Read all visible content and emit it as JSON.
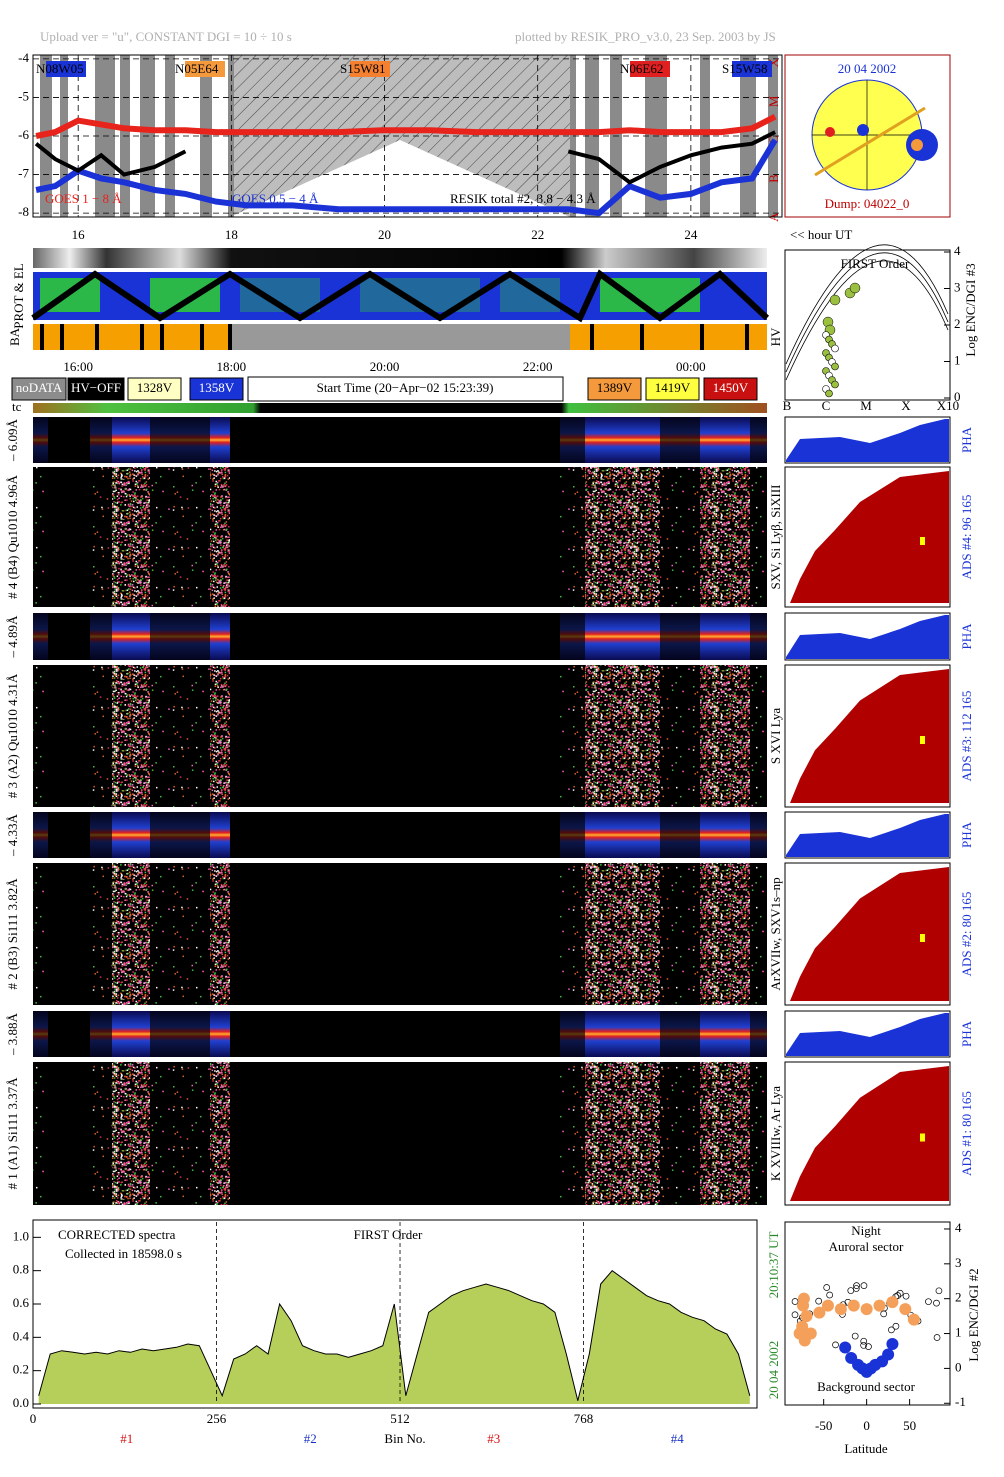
{
  "header": {
    "upload": "Upload ver = \"u\", CONSTANT  DGI =  10 ÷  10 s",
    "plotted": "plotted by RESIK_PRO_v3.0, 23 Sep. 2003 by JS"
  },
  "chart_data": [
    {
      "type": "line",
      "xlim": [
        15.41,
        25.19
      ],
      "ylim": [
        -8.1,
        -3.9
      ],
      "yticks": [
        -4,
        -5,
        -6,
        -7,
        -8
      ],
      "xticks": [
        16,
        18,
        20,
        22,
        24
      ],
      "xlabel": "<< hour UT",
      "classes": [
        "X",
        "M",
        "C",
        "B",
        "A"
      ],
      "active_regions": [
        "N08W05",
        "N05E64",
        "S15W81",
        "N06E62",
        "S15W58"
      ],
      "x": [
        15.45,
        15.7,
        16,
        16.3,
        16.6,
        17,
        17.4,
        17.8,
        18.2,
        18.8,
        19.4,
        20,
        20.6,
        21.2,
        21.8,
        22.4,
        22.8,
        23.2,
        23.6,
        24,
        24.4,
        24.8,
        25.1
      ],
      "series": [
        {
          "name": "GOES 1 − 8 Å",
          "color": "#e8231c",
          "values": [
            -6.0,
            -5.9,
            -5.6,
            -5.7,
            -5.8,
            -5.85,
            -5.85,
            -5.9,
            -5.9,
            -5.9,
            -5.9,
            -5.85,
            -5.85,
            -5.9,
            -5.9,
            -5.9,
            -5.9,
            -5.85,
            -5.9,
            -5.9,
            -5.9,
            -5.8,
            -5.5
          ]
        },
        {
          "name": "GOES 0.5 − 4 Å",
          "color": "#1b33d6",
          "values": [
            -7.4,
            -7.3,
            -6.9,
            -7.1,
            -7.2,
            -7.4,
            -7.5,
            -7.7,
            -7.8,
            -7.8,
            -7.9,
            -7.9,
            -7.9,
            -7.9,
            -7.9,
            -7.9,
            -8.0,
            -7.3,
            -7.6,
            -7.5,
            -7.2,
            -7.1,
            -6.1
          ]
        },
        {
          "name": "RESIK total #2, 3.8 − 4.3 Å",
          "color": "#000000",
          "values": [
            -6.2,
            -6.6,
            -6.9,
            -6.5,
            -7.0,
            -6.8,
            -6.4,
            null,
            null,
            null,
            null,
            null,
            null,
            null,
            null,
            -6.4,
            -6.6,
            -7.2,
            -6.8,
            -6.5,
            -6.3,
            -6.2,
            -5.9
          ]
        }
      ]
    },
    {
      "type": "area",
      "title": "FIRST Order",
      "notes": [
        "CORRECTED spectra",
        "Collected in 18598.0 s"
      ],
      "xlabel": "Bin No.",
      "xlim": [
        0,
        1010
      ],
      "xticks": [
        0,
        256,
        512,
        768
      ],
      "ylim": [
        0,
        1.05
      ],
      "yticks": [
        {
          "value": 0,
          "label": "0.0"
        },
        {
          "value": 0.2,
          "label": "0.2"
        },
        {
          "value": 0.4,
          "label": "0.4"
        },
        {
          "value": 0.6,
          "label": "0.6"
        },
        {
          "value": 0.8,
          "label": "0.8"
        },
        {
          "value": 1,
          "label": "1.0"
        }
      ],
      "channels": [
        "#1",
        "#2",
        "#3",
        "#4"
      ],
      "channel_colors": [
        "#d81414",
        "#1a33c8",
        "#d81414",
        "#1a33c8"
      ],
      "date": "20 04 2002",
      "time": "20:10:37 UT",
      "color": "#b5cf5a",
      "x": [
        8,
        24,
        40,
        56,
        72,
        88,
        104,
        120,
        136,
        152,
        168,
        184,
        200,
        216,
        232,
        248,
        264,
        280,
        296,
        312,
        328,
        344,
        360,
        376,
        392,
        408,
        424,
        440,
        456,
        472,
        488,
        504,
        520,
        536,
        552,
        568,
        584,
        600,
        616,
        632,
        648,
        664,
        680,
        696,
        712,
        728,
        744,
        760,
        776,
        792,
        808,
        824,
        840,
        856,
        872,
        888,
        904,
        920,
        936,
        952,
        968,
        984,
        1000
      ],
      "values": [
        0.05,
        0.3,
        0.32,
        0.31,
        0.3,
        0.31,
        0.3,
        0.32,
        0.31,
        0.33,
        0.32,
        0.33,
        0.34,
        0.36,
        0.35,
        0.2,
        0.05,
        0.27,
        0.3,
        0.35,
        0.3,
        0.6,
        0.5,
        0.35,
        0.32,
        0.3,
        0.3,
        0.28,
        0.3,
        0.32,
        0.35,
        0.6,
        0.05,
        0.3,
        0.55,
        0.6,
        0.65,
        0.68,
        0.7,
        0.72,
        0.7,
        0.68,
        0.65,
        0.62,
        0.6,
        0.55,
        0.3,
        0.02,
        0.3,
        0.72,
        0.8,
        0.75,
        0.7,
        0.65,
        0.62,
        0.6,
        0.55,
        0.52,
        0.5,
        0.45,
        0.42,
        0.3,
        0.05
      ]
    },
    {
      "type": "scatter",
      "title": "Night",
      "labels": [
        "Auroral sector",
        "Background sector"
      ],
      "xlabel": "Latitude",
      "ylabel": "Log ENC/DGI #2",
      "xlim": [
        -95,
        97
      ],
      "xticks": [
        -50,
        0,
        50
      ],
      "ylim": [
        -1.05,
        4.2
      ],
      "yticks": [
        -1,
        0,
        1,
        2,
        3,
        4
      ],
      "series": [
        {
          "color": "#f5a05a",
          "x": [
            -78,
            -75,
            -74,
            -73,
            -72,
            -70,
            -65,
            -55,
            -45,
            -30,
            -15,
            0,
            15,
            30,
            45,
            55
          ],
          "values": [
            1.0,
            1.2,
            1.8,
            2.0,
            0.8,
            1.5,
            1.0,
            1.6,
            1.8,
            1.7,
            1.8,
            1.7,
            1.8,
            1.9,
            1.7,
            1.4
          ]
        },
        {
          "color": "#1a33d6",
          "x": [
            -25,
            -18,
            -10,
            -5,
            0,
            5,
            10,
            18,
            25,
            30
          ],
          "values": [
            0.6,
            0.3,
            0.1,
            0.0,
            -0.1,
            0.0,
            0.1,
            0.2,
            0.4,
            0.7
          ]
        }
      ]
    }
  ],
  "sun": {
    "date": "20 04 2002",
    "dump": "Dump: 04022_0"
  },
  "first_order": {
    "title": "FIRST Order",
    "ylabel": "Log ENC/DGI #3",
    "yticks": [
      0,
      1,
      2,
      3,
      4
    ],
    "xlabels": [
      "B",
      "C",
      "M",
      "X",
      "X10"
    ]
  },
  "strips": {
    "labels": [
      "PROT & EL",
      "BA",
      "HV"
    ],
    "times": [
      "16:00",
      "18:00",
      "20:00",
      "22:00",
      "00:00"
    ],
    "tc": "tc"
  },
  "legend": {
    "items": [
      {
        "label": "noDATA",
        "color": "#8c8c8c"
      },
      {
        "label": "HV−OFF",
        "color": "#000000"
      },
      {
        "label": "1328V",
        "color": "#ffffc4"
      },
      {
        "label": "1358V",
        "color": "#1a33d6"
      },
      {
        "label": "1389V",
        "color": "#f59a3c"
      },
      {
        "label": "1419V",
        "color": "#ffff40"
      },
      {
        "label": "1450V",
        "color": "#c81010"
      }
    ],
    "start": "Start Time (20−Apr−02 15:23:39)"
  },
  "channels": [
    {
      "range": "– 6.09Å",
      "label": "# 4 (B4) Qu1010 4.96Å",
      "lines": "SXV, Si Lyβ, SiXIII",
      "pha": "PHA",
      "ads": "ADS #4:   96 165"
    },
    {
      "range": "– 4.89Å",
      "label": "# 3 (A2) Qu1010 4.31Å",
      "lines": "S XVI Lya",
      "pha": "PHA",
      "ads": "ADS #3:   112 165"
    },
    {
      "range": "– 4.33Å",
      "label": "# 2 (B3) Si111 3.82Å",
      "lines": "ArXVIIw, SXV1s–np",
      "pha": "PHA",
      "ads": "ADS #2:   80 165"
    },
    {
      "range": "– 3.88Å",
      "label": "# 1 (A1) Si111 3.37Å",
      "lines": "K XVIIIw, Ar Lya",
      "pha": "PHA",
      "ads": "ADS #1:   80 165"
    }
  ]
}
